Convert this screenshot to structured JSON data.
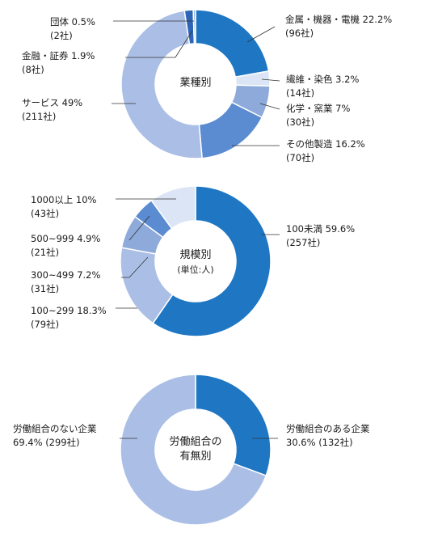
{
  "chart_data": [
    {
      "type": "pie",
      "donut": true,
      "center_label": [
        "業種別"
      ],
      "slices": [
        {
          "label": "金属・機器・電機",
          "value": 22.2,
          "count": "(96社)",
          "color": "#1f77c4",
          "text": "金属・機器・電機 22.2%"
        },
        {
          "label": "繊維・染色",
          "value": 3.2,
          "count": "(14社)",
          "color": "#dce5f5",
          "text": "繊維・染色 3.2%"
        },
        {
          "label": "化学・窯業",
          "value": 7,
          "count": "(30社)",
          "color": "#8eaadb",
          "text": "化学・窯業 7%"
        },
        {
          "label": "その他製造",
          "value": 16.2,
          "count": "(70社)",
          "color": "#5b8bd0",
          "text": "その他製造 16.2%"
        },
        {
          "label": "サービス",
          "value": 49,
          "count": "(211社)",
          "color": "#abbfe6",
          "text": "サービス 49%"
        },
        {
          "label": "金融・証券",
          "value": 1.9,
          "count": "(8社)",
          "color": "#2e66b6",
          "text": "金融・証券 1.9%"
        },
        {
          "label": "団体",
          "value": 0.5,
          "count": "(2社)",
          "color": "#9db8e3",
          "text": "団体 0.5%"
        }
      ]
    },
    {
      "type": "pie",
      "donut": true,
      "center_label": [
        "規模別",
        "(単位:人)"
      ],
      "slices": [
        {
          "label": "100未満",
          "value": 59.6,
          "count": "(257社)",
          "color": "#1f77c4",
          "text": "100未満 59.6%"
        },
        {
          "label": "100~299",
          "value": 18.3,
          "count": "(79社)",
          "color": "#abbfe6",
          "text": "100~299 18.3%"
        },
        {
          "label": "300~499",
          "value": 7.2,
          "count": "(31社)",
          "color": "#8eaadb",
          "text": "300~499 7.2%"
        },
        {
          "label": "500~999",
          "value": 4.9,
          "count": "(21社)",
          "color": "#5b8bd0",
          "text": "500~999 4.9%"
        },
        {
          "label": "1000以上",
          "value": 10,
          "count": "(43社)",
          "color": "#dce5f5",
          "text": "1000以上 10%"
        }
      ]
    },
    {
      "type": "pie",
      "donut": true,
      "center_label": [
        "労働組合の",
        "有無別"
      ],
      "slices": [
        {
          "label": "労働組合のある企業",
          "value": 30.6,
          "count": "30.6% (132社)",
          "color": "#1f77c4",
          "text": "労働組合のある企業"
        },
        {
          "label": "労働組合のない企業",
          "value": 69.4,
          "count": "69.4% (299社)",
          "color": "#abbfe6",
          "text": "労働組合のない企業"
        }
      ]
    }
  ]
}
